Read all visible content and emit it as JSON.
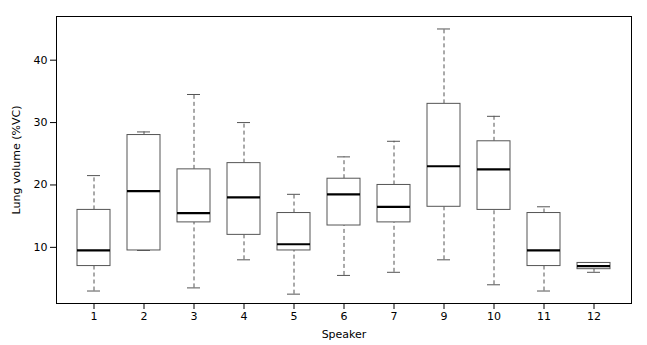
{
  "chart_data": {
    "type": "box",
    "xlabel": "Speaker",
    "ylabel": "Lung volume (%VC)",
    "categories": [
      "1",
      "2",
      "3",
      "4",
      "5",
      "6",
      "7",
      "9",
      "10",
      "11",
      "12"
    ],
    "whislo": [
      3.0,
      9.5,
      3.5,
      8.0,
      2.5,
      5.5,
      6.0,
      8.0,
      4.0,
      3.0,
      6.0
    ],
    "q1": [
      7.0,
      9.5,
      14.0,
      12.0,
      9.5,
      13.5,
      14.0,
      16.5,
      16.0,
      7.0,
      6.5
    ],
    "median": [
      9.5,
      19.0,
      15.5,
      18.0,
      10.5,
      18.5,
      16.5,
      23.0,
      22.5,
      9.5,
      7.0
    ],
    "q3": [
      16.0,
      28.0,
      22.5,
      23.5,
      15.5,
      21.0,
      20.0,
      33.0,
      27.0,
      15.5,
      7.5
    ],
    "whishi": [
      21.5,
      28.5,
      34.5,
      30.0,
      18.5,
      24.5,
      27.0,
      45.0,
      31.0,
      16.5,
      7.5
    ],
    "color": "#555555",
    "ylim": [
      1,
      47
    ],
    "yticks": [
      10,
      20,
      30,
      40
    ],
    "grid": false
  }
}
